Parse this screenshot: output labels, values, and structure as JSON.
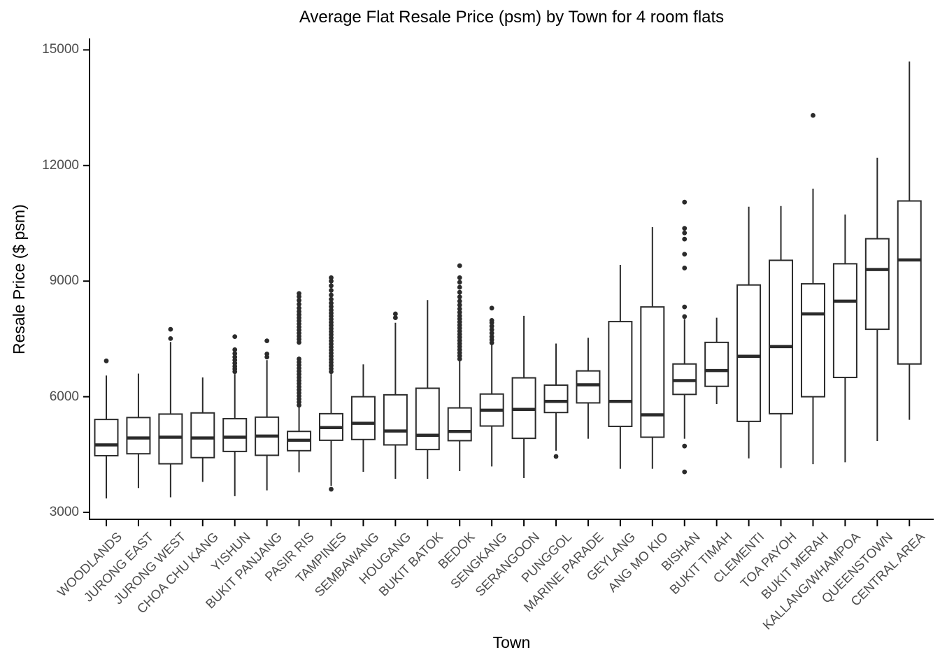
{
  "title": "Average Flat Resale Price (psm) by Town for 4 room flats",
  "colors": {
    "background": "#ffffff",
    "axis_line": "#000000",
    "box_stroke": "#2b2b2b",
    "box_fill": "#ffffff",
    "outlier": "#2b2b2b",
    "tick_label": "#4d4d4d",
    "title_text": "#000000"
  },
  "chart_data": {
    "type": "boxplot",
    "title": "Average Flat Resale Price (psm) by Town for 4 room flats",
    "xlabel": "Town",
    "ylabel": "Resale Price ($ psm)",
    "ylim": [
      3000,
      15000
    ],
    "yticks": [
      3000,
      6000,
      9000,
      12000,
      15000
    ],
    "grid": false,
    "legend": "none",
    "categories": [
      "WOODLANDS",
      "JURONG EAST",
      "JURONG WEST",
      "CHOA CHU KANG",
      "YISHUN",
      "BUKIT PANJANG",
      "PASIR RIS",
      "TAMPINES",
      "SEMBAWANG",
      "HOUGANG",
      "BUKIT BATOK",
      "BEDOK",
      "SENGKANG",
      "SERANGOON",
      "PUNGGOL",
      "MARINE PARADE",
      "GEYLANG",
      "ANG MO KIO",
      "BISHAN",
      "BUKIT TIMAH",
      "CLEMENTI",
      "TOA PAYOH",
      "BUKIT MERAH",
      "KALLANG/WHAMPOA",
      "QUEENSTOWN",
      "CENTRAL AREA"
    ],
    "series": [
      {
        "name": "WOODLANDS",
        "whisker_low": 3360,
        "q1": 4470,
        "median": 4750,
        "q3": 5410,
        "whisker_high": 6550,
        "outliers": [
          6930
        ]
      },
      {
        "name": "JURONG EAST",
        "whisker_low": 3630,
        "q1": 4520,
        "median": 4930,
        "q3": 5460,
        "whisker_high": 6600,
        "outliers": []
      },
      {
        "name": "JURONG WEST",
        "whisker_low": 3390,
        "q1": 4260,
        "median": 4950,
        "q3": 5550,
        "whisker_high": 7420,
        "outliers": [
          7510,
          7750
        ]
      },
      {
        "name": "CHOA CHU KANG",
        "whisker_low": 3790,
        "q1": 4420,
        "median": 4930,
        "q3": 5580,
        "whisker_high": 6500,
        "outliers": []
      },
      {
        "name": "YISHUN",
        "whisker_low": 3420,
        "q1": 4580,
        "median": 4950,
        "q3": 5430,
        "whisker_high": 6590,
        "outliers": [
          6650,
          6720,
          6790,
          6870,
          6950,
          7030,
          7120,
          7220,
          7560
        ]
      },
      {
        "name": "BUKIT PANJANG",
        "whisker_low": 3570,
        "q1": 4480,
        "median": 4980,
        "q3": 5470,
        "whisker_high": 6950,
        "outliers": [
          7030,
          7110,
          7450
        ]
      },
      {
        "name": "PASIR RIS",
        "whisker_low": 4040,
        "q1": 4600,
        "median": 4870,
        "q3": 5100,
        "whisker_high": 5740,
        "outliers": [
          5780,
          5860,
          5940,
          6020,
          6100,
          6180,
          6260,
          6340,
          6420,
          6500,
          6580,
          6660,
          6740,
          6820,
          6900,
          6980,
          7410,
          7490,
          7570,
          7650,
          7730,
          7810,
          7890,
          7970,
          8050,
          8130,
          8210,
          8300,
          8400,
          8500,
          8600,
          8680
        ]
      },
      {
        "name": "TAMPINES",
        "whisker_low": 3690,
        "q1": 4870,
        "median": 5200,
        "q3": 5560,
        "whisker_high": 6590,
        "outliers": [
          3600,
          6650,
          6730,
          6810,
          6890,
          6970,
          7050,
          7130,
          7210,
          7290,
          7370,
          7450,
          7530,
          7610,
          7690,
          7770,
          7850,
          7930,
          8010,
          8090,
          8170,
          8250,
          8340,
          8430,
          8530,
          8640,
          8760,
          8880,
          9000,
          9090
        ]
      },
      {
        "name": "SEMBAWANG",
        "whisker_low": 4050,
        "q1": 4890,
        "median": 5310,
        "q3": 6000,
        "whisker_high": 6840,
        "outliers": []
      },
      {
        "name": "HOUGANG",
        "whisker_low": 3870,
        "q1": 4750,
        "median": 5110,
        "q3": 6050,
        "whisker_high": 7920,
        "outliers": [
          8050,
          8150
        ]
      },
      {
        "name": "BUKIT BATOK",
        "whisker_low": 3870,
        "q1": 4630,
        "median": 5000,
        "q3": 6220,
        "whisker_high": 8510,
        "outliers": []
      },
      {
        "name": "BEDOK",
        "whisker_low": 4070,
        "q1": 4860,
        "median": 5100,
        "q3": 5710,
        "whisker_high": 6920,
        "outliers": [
          6980,
          7060,
          7140,
          7220,
          7300,
          7380,
          7460,
          7540,
          7620,
          7700,
          7780,
          7860,
          7940,
          8020,
          8100,
          8190,
          8280,
          8380,
          8480,
          8590,
          8710,
          8840,
          8970,
          9090,
          9400
        ]
      },
      {
        "name": "SENGKANG",
        "whisker_low": 4190,
        "q1": 5240,
        "median": 5650,
        "q3": 6070,
        "whisker_high": 7350,
        "outliers": [
          7400,
          7480,
          7560,
          7650,
          7740,
          7830,
          7920,
          7980,
          8300
        ]
      },
      {
        "name": "SERANGOON",
        "whisker_low": 3890,
        "q1": 4920,
        "median": 5670,
        "q3": 6490,
        "whisker_high": 8100,
        "outliers": []
      },
      {
        "name": "PUNGGOL",
        "whisker_low": 4600,
        "q1": 5590,
        "median": 5880,
        "q3": 6300,
        "whisker_high": 7380,
        "outliers": [
          4450
        ]
      },
      {
        "name": "MARINE PARADE",
        "whisker_low": 4910,
        "q1": 5840,
        "median": 6310,
        "q3": 6670,
        "whisker_high": 7530,
        "outliers": []
      },
      {
        "name": "GEYLANG",
        "whisker_low": 4130,
        "q1": 5230,
        "median": 5880,
        "q3": 7950,
        "whisker_high": 9420,
        "outliers": []
      },
      {
        "name": "ANG MO KIO",
        "whisker_low": 4130,
        "q1": 4950,
        "median": 5530,
        "q3": 8330,
        "whisker_high": 10400,
        "outliers": []
      },
      {
        "name": "BISHAN",
        "whisker_low": 4910,
        "q1": 6060,
        "median": 6420,
        "q3": 6850,
        "whisker_high": 8010,
        "outliers": [
          4050,
          4720,
          8080,
          8330,
          9340,
          9700,
          10090,
          10250,
          10370,
          11050
        ]
      },
      {
        "name": "BUKIT TIMAH",
        "whisker_low": 5810,
        "q1": 6270,
        "median": 6680,
        "q3": 7410,
        "whisker_high": 8050,
        "outliers": []
      },
      {
        "name": "CLEMENTI",
        "whisker_low": 4400,
        "q1": 5360,
        "median": 7050,
        "q3": 8900,
        "whisker_high": 10930,
        "outliers": []
      },
      {
        "name": "TOA PAYOH",
        "whisker_low": 4150,
        "q1": 5560,
        "median": 7300,
        "q3": 9540,
        "whisker_high": 10950,
        "outliers": []
      },
      {
        "name": "BUKIT MERAH",
        "whisker_low": 4250,
        "q1": 6000,
        "median": 8150,
        "q3": 8930,
        "whisker_high": 11400,
        "outliers": [
          13300
        ]
      },
      {
        "name": "KALLANG/WHAMPOA",
        "whisker_low": 4300,
        "q1": 6500,
        "median": 8480,
        "q3": 9450,
        "whisker_high": 10730,
        "outliers": []
      },
      {
        "name": "QUEENSTOWN",
        "whisker_low": 4850,
        "q1": 7750,
        "median": 9300,
        "q3": 10100,
        "whisker_high": 12200,
        "outliers": []
      },
      {
        "name": "CENTRAL AREA",
        "whisker_low": 5400,
        "q1": 6850,
        "median": 9550,
        "q3": 11080,
        "whisker_high": 14700,
        "outliers": []
      }
    ]
  }
}
